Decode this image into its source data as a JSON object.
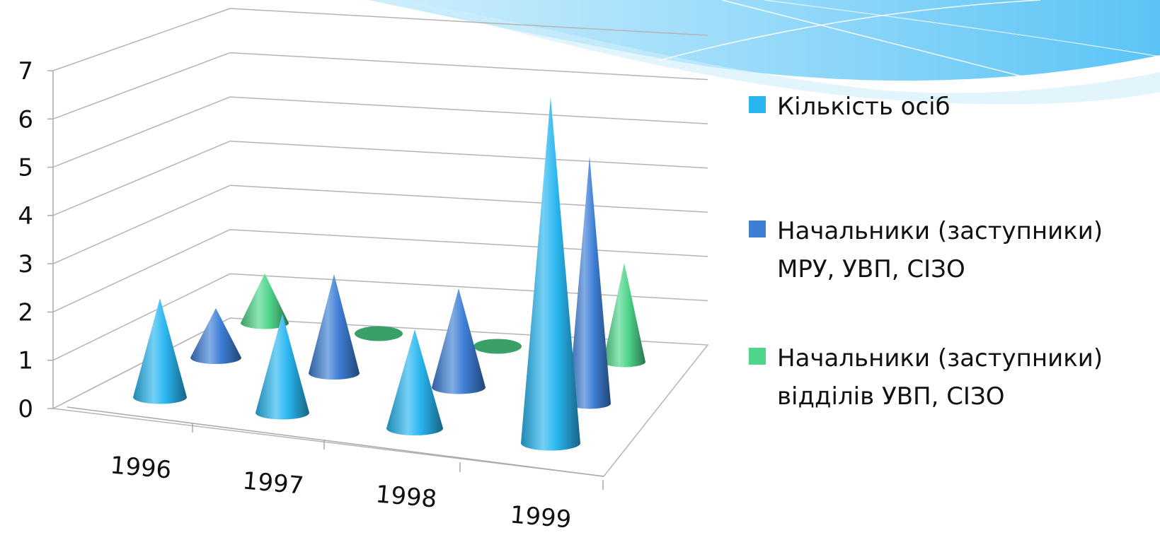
{
  "chart_data": {
    "type": "bar",
    "style": "3d-cone",
    "categories": [
      "1996",
      "1997",
      "1998",
      "1999"
    ],
    "series": [
      {
        "name": "Кількість осіб",
        "values": [
          2,
          2,
          2,
          7
        ],
        "color": "#29B6F0"
      },
      {
        "name": "Начальники (заступники) МРУ, УВП, СІЗО",
        "values": [
          1,
          2,
          2,
          5
        ],
        "color": "#3E7FD6"
      },
      {
        "name": "Начальники (заступники) відділів УВП, СІЗО",
        "values": [
          1,
          0,
          0,
          2
        ],
        "color": "#4FD58B"
      }
    ],
    "ylim": [
      0,
      7
    ],
    "yticks": [
      "0",
      "1",
      "2",
      "3",
      "4",
      "5",
      "6",
      "7"
    ],
    "grid": true,
    "legend_position": "right"
  },
  "decoration": {
    "name": "top-right-wave-banner",
    "colors": [
      "#5BC4F5",
      "#9DDCFA",
      "#CFEFFC"
    ]
  }
}
